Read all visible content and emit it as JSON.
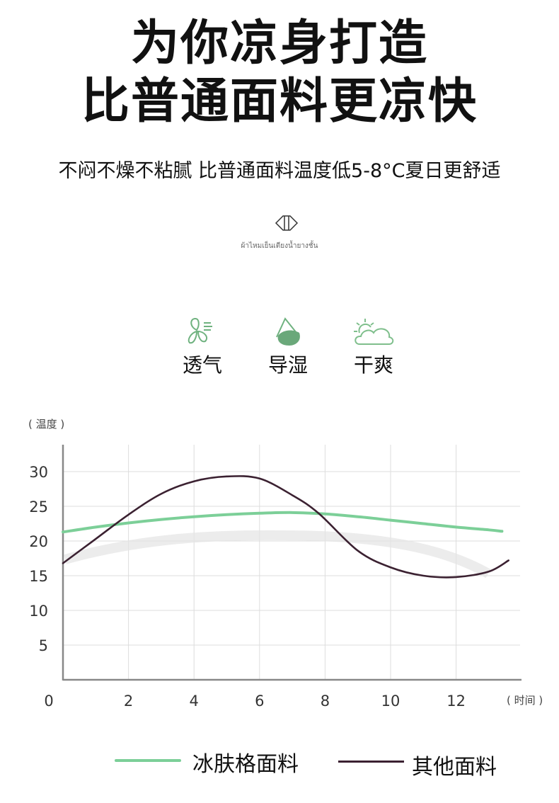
{
  "header": {
    "title_line1": "为你凉身打造",
    "title_line2": "比普通面料更凉快",
    "subtitle": "不闷不燥不粘腻 比普通面料温度低5-8°C夏日更舒适",
    "thai_caption": "ผ้าไหมเย็นเตียงน้ำยางชั้น",
    "emblem_icon": "diamond-emblem-icon"
  },
  "features": [
    {
      "label": "透气",
      "icon": "fan-breeze-icon"
    },
    {
      "label": "导湿",
      "icon": "water-drop-mountain-icon"
    },
    {
      "label": "干爽",
      "icon": "sun-cloud-icon"
    }
  ],
  "colors": {
    "green": "#7ccf98",
    "dark": "#3b2131",
    "grid": "#dddddd",
    "axis": "#888888",
    "icon_green": "#5fa86f"
  },
  "chart_data": {
    "type": "line",
    "ylabel": "( 温度 )",
    "xlabel": "( 时间 )",
    "xlim": [
      0,
      13.6
    ],
    "ylim": [
      0,
      32
    ],
    "x_ticks": [
      0,
      2,
      4,
      6,
      8,
      10,
      12
    ],
    "y_ticks": [
      5,
      10,
      15,
      20,
      25,
      30
    ],
    "grid": true,
    "legend_placement": "bottom",
    "series": [
      {
        "name": "冰肤格面料",
        "color": "#7ccf98",
        "x": [
          0,
          1,
          2,
          3,
          4,
          5,
          6,
          7,
          8,
          9,
          10,
          11,
          12,
          13,
          13.4
        ],
        "y": [
          21.3,
          22,
          22.6,
          23.1,
          23.5,
          23.8,
          24,
          24.1,
          23.9,
          23.5,
          23,
          22.5,
          22,
          21.6,
          21.4
        ]
      },
      {
        "name": "其他面料",
        "color": "#3b2131",
        "x": [
          0,
          1,
          2,
          3,
          4,
          5,
          6,
          7,
          7.8,
          9,
          10,
          11,
          12,
          13,
          13.6
        ],
        "y": [
          16.8,
          20.3,
          23.8,
          26.8,
          28.6,
          29.3,
          29,
          26.6,
          24,
          18.6,
          16.2,
          15,
          14.8,
          15.6,
          17.2
        ]
      }
    ]
  }
}
